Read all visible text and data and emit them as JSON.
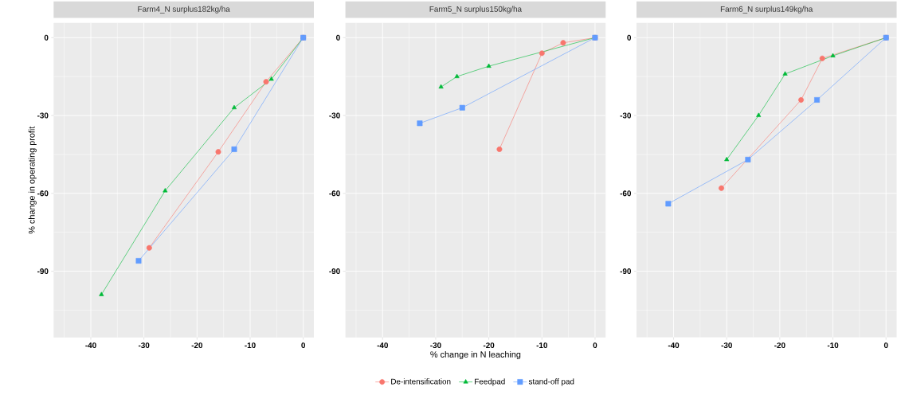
{
  "chart_data": [
    {
      "type": "line",
      "title": "Farm4_N surplus182kg/ha",
      "ylabel": "% change in operating profit",
      "xlim": [
        -47,
        2
      ],
      "ylim": [
        -115.5,
        5.7
      ],
      "xticks": [
        -40,
        -30,
        -20,
        -10,
        0
      ],
      "yticks": [
        0,
        -30,
        -60,
        -90
      ],
      "grid": true,
      "series": [
        {
          "color": "#f8766d",
          "marker": "circle",
          "x": [
            0,
            -7,
            -16,
            -29
          ],
          "values": [
            0,
            -17,
            -44,
            -81
          ]
        },
        {
          "color": "#00ba38",
          "marker": "triangle",
          "x": [
            0,
            -6,
            -13,
            -26,
            -38
          ],
          "values": [
            0,
            -16,
            -27,
            -59,
            -99
          ]
        },
        {
          "color": "#619cff",
          "marker": "square",
          "x": [
            0,
            -13,
            -31
          ],
          "values": [
            0,
            -43,
            -86
          ]
        }
      ]
    },
    {
      "type": "line",
      "title": "Farm5_N surplus150kg/ha",
      "xlabel": "% change in N leaching",
      "xlim": [
        -47,
        2
      ],
      "ylim": [
        -115.5,
        5.7
      ],
      "xticks": [
        -40,
        -30,
        -20,
        -10,
        0
      ],
      "yticks": [
        0,
        -30,
        -60,
        -90
      ],
      "grid": true,
      "legend": "bottom",
      "series": [
        {
          "name": "De-intensification",
          "color": "#f8766d",
          "marker": "circle",
          "x": [
            0,
            -6,
            -10,
            -18
          ],
          "values": [
            0,
            -2,
            -6,
            -43
          ]
        },
        {
          "name": "Feedpad",
          "color": "#00ba38",
          "marker": "triangle",
          "x": [
            0,
            -20,
            -26,
            -29
          ],
          "values": [
            0,
            -11,
            -15,
            -19
          ]
        },
        {
          "name": "stand-off pad",
          "color": "#619cff",
          "marker": "square",
          "x": [
            0,
            -25,
            -33
          ],
          "values": [
            0,
            -27,
            -33
          ]
        }
      ]
    },
    {
      "type": "line",
      "title": "Farm6_N surplus149kg/ha",
      "xlim": [
        -47,
        2
      ],
      "ylim": [
        -115.5,
        5.7
      ],
      "xticks": [
        -40,
        -30,
        -20,
        -10,
        0
      ],
      "yticks": [
        0,
        -30,
        -60,
        -90
      ],
      "grid": true,
      "series": [
        {
          "color": "#f8766d",
          "marker": "circle",
          "x": [
            0,
            -12,
            -16,
            -31
          ],
          "values": [
            0,
            -8,
            -24,
            -58
          ]
        },
        {
          "color": "#00ba38",
          "marker": "triangle",
          "x": [
            0,
            -10,
            -19,
            -24,
            -30
          ],
          "values": [
            0,
            -7,
            -14,
            -30,
            -47
          ]
        },
        {
          "color": "#619cff",
          "marker": "square",
          "x": [
            0,
            -13,
            -26,
            -41
          ],
          "values": [
            0,
            -24,
            -47,
            -64
          ]
        }
      ]
    }
  ]
}
